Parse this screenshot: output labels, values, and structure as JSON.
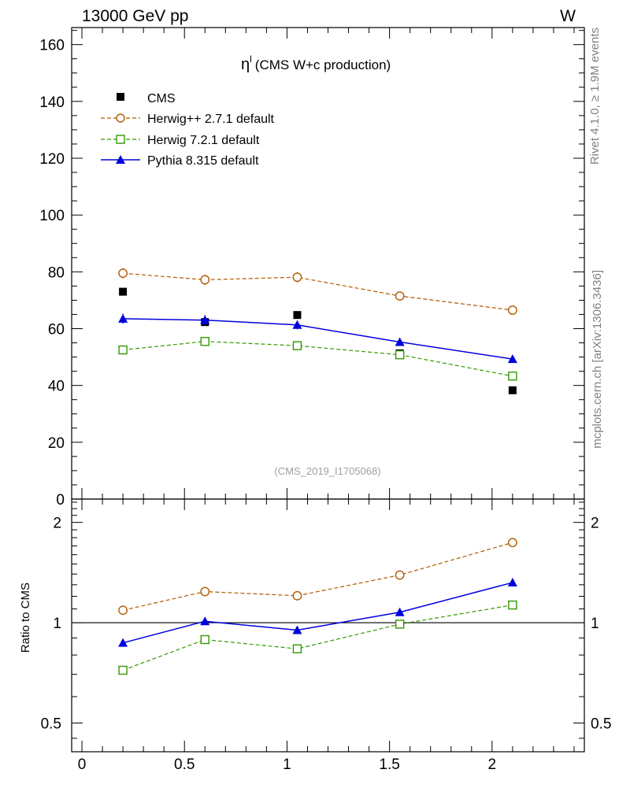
{
  "header": {
    "energy_label": "13000 GeV pp",
    "process_label": "W"
  },
  "side_labels": {
    "rivet": "Rivet 4.1.0, ≥ 1.9M events",
    "mcplots": "mcplots.cern.ch [arXiv:1306.3436]"
  },
  "chart_data": {
    "type": "scatter",
    "title_symbol": "η",
    "title_superscript": "l",
    "title_text": "(CMS W+c production)",
    "analysis_id": "(CMS_2019_I1705068)",
    "xlabel": "",
    "xlim": [
      -0.05,
      2.45
    ],
    "x_ticks": [
      {
        "v": 0,
        "label": "0"
      },
      {
        "v": 0.5,
        "label": "0.5"
      },
      {
        "v": 1,
        "label": "1"
      },
      {
        "v": 1.5,
        "label": "1.5"
      },
      {
        "v": 2,
        "label": "2"
      }
    ],
    "main": {
      "ylim": [
        0,
        166
      ],
      "y_ticks": [
        {
          "v": 0,
          "label": "0"
        },
        {
          "v": 20,
          "label": "20"
        },
        {
          "v": 40,
          "label": "40"
        },
        {
          "v": 60,
          "label": "60"
        },
        {
          "v": 80,
          "label": "80"
        },
        {
          "v": 100,
          "label": "100"
        },
        {
          "v": 120,
          "label": "120"
        },
        {
          "v": 140,
          "label": "140"
        },
        {
          "v": 160,
          "label": "160"
        }
      ]
    },
    "ratio": {
      "ylabel": "Ratio to CMS",
      "log_scale": true,
      "ylim": [
        0.41,
        2.35
      ],
      "y_ticks": [
        {
          "v": 0.5,
          "label": "0.5"
        },
        {
          "v": 1,
          "label": "1"
        },
        {
          "v": 2,
          "label": "2"
        }
      ],
      "reference_line": 1
    },
    "x": [
      0.2,
      0.6,
      1.05,
      1.55,
      2.1
    ],
    "series": [
      {
        "name": "CMS",
        "color": "#000000",
        "marker": "filled-square",
        "line": "none",
        "values": [
          73.0,
          62.3,
          64.8,
          51.3,
          38.3
        ],
        "errors": [
          0.6,
          0.6,
          0.6,
          0.6,
          0.6
        ]
      },
      {
        "name": "Herwig++ 2.7.1 default",
        "color": "#b35900",
        "marker": "open-circle",
        "line": "dashed",
        "values": [
          79.5,
          77.2,
          78.1,
          71.5,
          66.5
        ],
        "errors": [
          1.8,
          1.8,
          1.8,
          1.5,
          1.0
        ],
        "ratio": [
          1.09,
          1.24,
          1.205,
          1.39,
          1.74
        ]
      },
      {
        "name": "Herwig 7.2.1 default",
        "color": "#339900",
        "marker": "open-square",
        "line": "dashed",
        "values": [
          52.5,
          55.5,
          54.0,
          50.8,
          43.3
        ],
        "errors": [
          1.2,
          1.4,
          1.2,
          1.2,
          1.0
        ],
        "ratio": [
          0.72,
          0.89,
          0.835,
          0.99,
          1.13
        ]
      },
      {
        "name": "Pythia 8.315 default",
        "color": "#0000dd",
        "marker": "filled-triangle",
        "line": "solid",
        "values": [
          63.5,
          63.0,
          61.3,
          55.3,
          49.3
        ],
        "errors": [
          1.8,
          1.8,
          1.5,
          1.3,
          0.9
        ],
        "ratio": [
          0.87,
          1.01,
          0.95,
          1.075,
          1.32
        ],
        "ratio_errors": [
          0.0,
          0.025,
          0.0,
          0.0,
          0.0
        ]
      }
    ]
  }
}
